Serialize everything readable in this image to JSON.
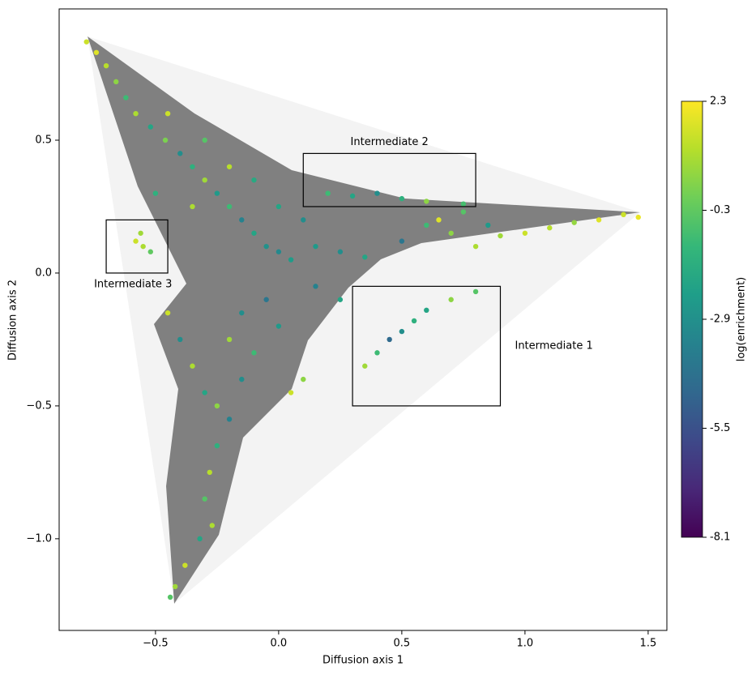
{
  "chart_data": {
    "type": "scatter",
    "xlabel": "Diffusion axis 1",
    "ylabel": "Diffusion axis 2",
    "xlim": [
      -0.891,
      1.576
    ],
    "ylim": [
      -1.345,
      0.994
    ],
    "xticks": [
      {
        "value": -0.5,
        "label": "−0.5"
      },
      {
        "value": 0,
        "label": "0.0"
      },
      {
        "value": 0.5,
        "label": "0.5"
      },
      {
        "value": 1,
        "label": "1.0"
      },
      {
        "value": 1.5,
        "label": "1.5"
      }
    ],
    "yticks": [
      {
        "value": -1,
        "label": "−1.0"
      },
      {
        "value": -0.5,
        "label": "−0.5"
      },
      {
        "value": 0,
        "label": "0.0"
      },
      {
        "value": 0.5,
        "label": "0.5"
      }
    ],
    "colorbar": {
      "label": "log(enrichment)",
      "clim": [
        -8.1,
        2.3
      ],
      "ticks": [
        2.3,
        -0.3,
        -2.9,
        -5.5,
        -8.1
      ],
      "colormap": "viridis"
    },
    "regions": [
      {
        "label": "Intermediate 1",
        "xlim": [
          0.3,
          0.9
        ],
        "ylim": [
          -0.5,
          -0.05
        ]
      },
      {
        "label": "Intermediate 2",
        "xlim": [
          0.1,
          0.8
        ],
        "ylim": [
          0.25,
          0.45
        ]
      },
      {
        "label": "Intermediate 3",
        "xlim": [
          -0.7,
          -0.45
        ],
        "ylim": [
          0.0,
          0.2
        ]
      }
    ],
    "x": [
      -0.78,
      -0.74,
      -0.7,
      -0.66,
      -0.62,
      -0.58,
      -0.52,
      -0.46,
      -0.4,
      -0.35,
      -0.3,
      -0.25,
      -0.2,
      -0.15,
      -0.1,
      -0.05,
      0.0,
      0.05,
      -0.45,
      -0.3,
      -0.2,
      -0.1,
      0.0,
      0.1,
      -0.35,
      -0.5,
      0.15,
      0.25,
      0.35,
      0.5,
      0.6,
      0.7,
      0.8,
      0.9,
      1.0,
      1.1,
      1.2,
      1.3,
      1.4,
      1.46,
      0.65,
      0.75,
      0.85,
      0.2,
      0.3,
      0.4,
      0.5,
      0.6,
      0.75,
      0.35,
      0.4,
      0.45,
      0.5,
      0.55,
      0.6,
      0.7,
      0.8,
      -0.58,
      -0.55,
      -0.56,
      -0.52,
      -0.45,
      -0.4,
      -0.35,
      -0.3,
      -0.25,
      -0.2,
      -0.25,
      -0.28,
      -0.3,
      -0.27,
      -0.32,
      -0.38,
      -0.42,
      -0.44,
      -0.15,
      -0.1,
      0.0,
      0.1,
      0.05,
      -0.05,
      0.15,
      0.25,
      -0.15,
      -0.2
    ],
    "y": [
      0.87,
      0.83,
      0.78,
      0.72,
      0.66,
      0.6,
      0.55,
      0.5,
      0.45,
      0.4,
      0.35,
      0.3,
      0.25,
      0.2,
      0.15,
      0.1,
      0.08,
      0.05,
      0.6,
      0.5,
      0.4,
      0.35,
      0.25,
      0.2,
      0.25,
      0.3,
      0.1,
      0.08,
      0.06,
      0.12,
      0.18,
      0.15,
      0.1,
      0.14,
      0.15,
      0.17,
      0.19,
      0.2,
      0.22,
      0.21,
      0.2,
      0.23,
      0.18,
      0.3,
      0.29,
      0.3,
      0.28,
      0.27,
      0.26,
      -0.35,
      -0.3,
      -0.25,
      -0.22,
      -0.18,
      -0.14,
      -0.1,
      -0.07,
      0.12,
      0.1,
      0.15,
      0.08,
      -0.15,
      -0.25,
      -0.35,
      -0.45,
      -0.5,
      -0.55,
      -0.65,
      -0.75,
      -0.85,
      -0.95,
      -1.0,
      -1.1,
      -1.18,
      -1.22,
      -0.4,
      -0.3,
      -0.2,
      -0.4,
      -0.45,
      -0.1,
      -0.05,
      -0.1,
      -0.15,
      -0.25
    ],
    "c": [
      1.5,
      1.8,
      1.2,
      0.5,
      -1.0,
      1.0,
      -2.0,
      0.2,
      -3.0,
      -1.5,
      0.8,
      -2.5,
      -1.0,
      -3.5,
      -2.0,
      -2.8,
      -3.2,
      -2.4,
      1.5,
      -0.5,
      1.2,
      -1.8,
      -2.0,
      -3.0,
      1.0,
      -1.5,
      -2.5,
      -3.0,
      -2.0,
      -4.0,
      -1.0,
      0.5,
      1.0,
      0.8,
      1.5,
      1.2,
      0.6,
      1.8,
      1.5,
      2.0,
      1.8,
      -0.5,
      -2.5,
      -1.0,
      -2.0,
      -3.0,
      -1.5,
      0.5,
      -0.8,
      0.8,
      -1.0,
      -4.5,
      -3.0,
      -1.5,
      -2.0,
      0.5,
      -0.5,
      1.5,
      1.0,
      0.8,
      -0.3,
      1.5,
      -3.0,
      1.0,
      -2.0,
      0.5,
      -3.5,
      -1.5,
      1.2,
      -0.5,
      1.0,
      -2.0,
      1.5,
      0.8,
      -0.5,
      -3.0,
      -1.0,
      -2.5,
      0.5,
      1.5,
      -4.0,
      -3.5,
      -2.0,
      -3.0,
      0.8
    ]
  }
}
